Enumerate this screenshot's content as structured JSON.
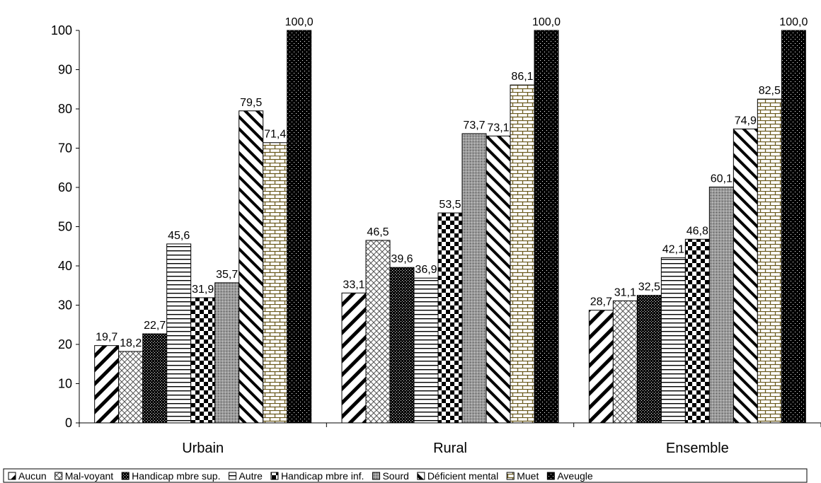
{
  "chart_data": {
    "type": "bar",
    "title": "",
    "xlabel": "",
    "ylabel": "",
    "ylim": [
      0,
      100
    ],
    "yticks": [
      0,
      10,
      20,
      30,
      40,
      50,
      60,
      70,
      80,
      90,
      100
    ],
    "grid": false,
    "legend_position": "bottom",
    "categories": [
      "Urbain",
      "Rural",
      "Ensemble"
    ],
    "series": [
      {
        "name": "Aucun",
        "pattern": "diag-wide",
        "values": [
          19.7,
          33.1,
          28.7
        ],
        "labels": [
          "19,7",
          "33,1",
          "28,7"
        ]
      },
      {
        "name": "Mal-voyant",
        "pattern": "crosshatch",
        "values": [
          18.2,
          46.5,
          31.1
        ],
        "labels": [
          "18,2",
          "46,5",
          "31,1"
        ]
      },
      {
        "name": "Handicap mbre sup.",
        "pattern": "dense-dots",
        "values": [
          22.7,
          39.6,
          32.5
        ],
        "labels": [
          "22,7",
          "39,6",
          "32,5"
        ]
      },
      {
        "name": "Autre",
        "pattern": "horizontal-lines",
        "values": [
          45.6,
          36.9,
          42.1
        ],
        "labels": [
          "45,6",
          "36,9",
          "42,1"
        ]
      },
      {
        "name": "Handicap mbre inf.",
        "pattern": "checker",
        "values": [
          31.9,
          53.5,
          46.8
        ],
        "labels": [
          "31,9",
          "53,5",
          "46,8"
        ]
      },
      {
        "name": "Sourd",
        "pattern": "grey-dots",
        "values": [
          35.7,
          73.7,
          60.1
        ],
        "labels": [
          "35,7",
          "73,7",
          "60,1"
        ]
      },
      {
        "name": "Déficient mental",
        "pattern": "diag-back",
        "values": [
          79.5,
          73.1,
          74.9
        ],
        "labels": [
          "79,5",
          "73,1",
          "74,9"
        ]
      },
      {
        "name": "Muet",
        "pattern": "brick",
        "values": [
          71.4,
          86.1,
          82.5
        ],
        "labels": [
          "71,4",
          "86,1",
          "82,5"
        ]
      },
      {
        "name": "Aveugle",
        "pattern": "black-dots",
        "values": [
          100.0,
          100.0,
          100.0
        ],
        "labels": [
          "100,0",
          "100,0",
          "100,0"
        ]
      }
    ]
  }
}
